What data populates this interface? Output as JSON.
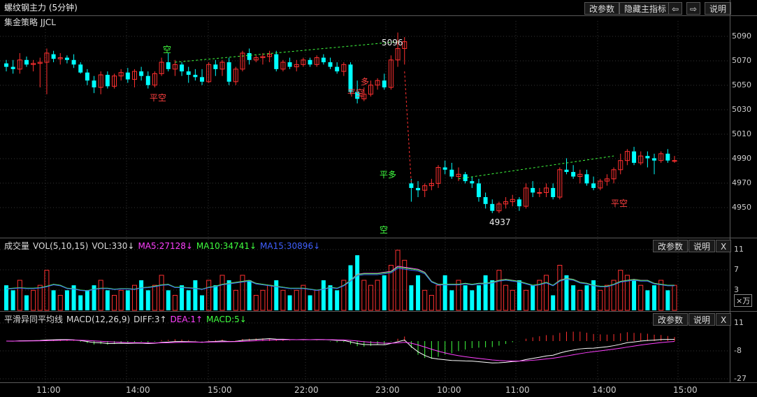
{
  "header": {
    "title": "螺纹钢主力 (5分钟)",
    "btn_params": "改参数",
    "btn_hide": "隐藏主指标",
    "btn_left": "⇦",
    "btn_right": "⇨",
    "btn_help": "说明"
  },
  "main_panel": {
    "strategy_label": "集金策略 JJCL",
    "y_ticks": [
      "5090",
      "5070",
      "5050",
      "5030",
      "5010",
      "4990",
      "4970",
      "4950"
    ],
    "high_label": "5096",
    "low_label": "4937",
    "signals": [
      "空",
      "平空",
      "平空",
      "多",
      "平多",
      "空",
      "平空"
    ]
  },
  "volume_panel": {
    "name": "成交量",
    "indicator": "VOL(5,10,15)",
    "vol": "VOL:330↓",
    "ma5": "MA5:27128↓",
    "ma10": "MA10:34741↓",
    "ma15": "MA15:30896↓",
    "btn_params": "改参数",
    "btn_help": "说明",
    "btn_close": "X",
    "y_ticks": [
      "11",
      "7",
      "3"
    ],
    "unit": "×万",
    "colors": {
      "ma5": "#ff40ff",
      "ma10": "#40ff40",
      "ma15": "#4060ff"
    }
  },
  "macd_panel": {
    "name": "平滑异同平均线",
    "indicator": "MACD(12,26,9)",
    "diff": "DIFF:3↑",
    "dea": "DEA:1↑",
    "macd": "MACD:5↓",
    "btn_params": "改参数",
    "btn_help": "说明",
    "btn_close": "X",
    "y_ticks": [
      "11",
      "-8",
      "-27"
    ]
  },
  "x_axis": [
    "11:00",
    "14:00",
    "15:00",
    "22:00",
    "23:00",
    "10:00",
    "11:00",
    "14:00",
    "15:00"
  ],
  "chart_data": {
    "type": "candlestick",
    "up_color": "#ff3030",
    "down_color": "#00ffff",
    "price_range": [
      4928,
      5098
    ],
    "candles": [
      [
        5067,
        5070,
        5060,
        5064
      ],
      [
        5064,
        5070,
        5058,
        5062
      ],
      [
        5062,
        5076,
        5058,
        5070
      ],
      [
        5070,
        5073,
        5064,
        5066
      ],
      [
        5066,
        5070,
        5060,
        5067
      ],
      [
        5067,
        5072,
        5046,
        5068
      ],
      [
        5068,
        5080,
        5040,
        5076
      ],
      [
        5075,
        5078,
        5068,
        5071
      ],
      [
        5071,
        5076,
        5066,
        5072
      ],
      [
        5072,
        5074,
        5067,
        5070
      ],
      [
        5070,
        5075,
        5063,
        5066
      ],
      [
        5066,
        5068,
        5058,
        5059
      ],
      [
        5059,
        5062,
        5048,
        5052
      ],
      [
        5052,
        5056,
        5041,
        5046
      ],
      [
        5046,
        5060,
        5040,
        5057
      ],
      [
        5057,
        5060,
        5045,
        5047
      ],
      [
        5047,
        5058,
        5045,
        5056
      ],
      [
        5056,
        5062,
        5052,
        5059
      ],
      [
        5059,
        5063,
        5050,
        5053
      ],
      [
        5053,
        5062,
        5046,
        5060
      ],
      [
        5060,
        5064,
        5052,
        5056
      ],
      [
        5056,
        5060,
        5045,
        5048
      ],
      [
        5048,
        5060,
        5046,
        5058
      ],
      [
        5058,
        5072,
        5056,
        5068
      ],
      [
        5068,
        5076,
        5060,
        5062
      ],
      [
        5062,
        5070,
        5056,
        5066
      ],
      [
        5066,
        5068,
        5056,
        5060
      ],
      [
        5060,
        5064,
        5050,
        5057
      ],
      [
        5057,
        5062,
        5052,
        5055
      ],
      [
        5055,
        5062,
        5048,
        5051
      ],
      [
        5051,
        5068,
        5050,
        5066
      ],
      [
        5066,
        5070,
        5056,
        5062
      ],
      [
        5062,
        5070,
        5056,
        5068
      ],
      [
        5068,
        5072,
        5048,
        5051
      ],
      [
        5051,
        5064,
        5048,
        5062
      ],
      [
        5062,
        5078,
        5060,
        5076
      ],
      [
        5076,
        5080,
        5066,
        5070
      ],
      [
        5070,
        5074,
        5068,
        5072
      ],
      [
        5072,
        5076,
        5066,
        5073
      ],
      [
        5073,
        5078,
        5068,
        5075
      ],
      [
        5075,
        5078,
        5060,
        5062
      ],
      [
        5062,
        5070,
        5060,
        5068
      ],
      [
        5068,
        5072,
        5062,
        5064
      ],
      [
        5064,
        5070,
        5060,
        5066
      ],
      [
        5066,
        5072,
        5064,
        5070
      ],
      [
        5070,
        5072,
        5064,
        5066
      ],
      [
        5066,
        5074,
        5064,
        5072
      ],
      [
        5072,
        5075,
        5066,
        5068
      ],
      [
        5068,
        5072,
        5062,
        5064
      ],
      [
        5064,
        5068,
        5058,
        5060
      ],
      [
        5060,
        5068,
        5056,
        5066
      ],
      [
        5066,
        5068,
        5040,
        5042
      ],
      [
        5042,
        5052,
        5032,
        5036
      ],
      [
        5036,
        5046,
        5034,
        5040
      ],
      [
        5040,
        5052,
        5038,
        5048
      ],
      [
        5048,
        5054,
        5044,
        5052
      ],
      [
        5052,
        5058,
        5044,
        5046
      ],
      [
        5046,
        5074,
        5044,
        5070
      ],
      [
        5070,
        5094,
        5064,
        5080
      ],
      [
        5080,
        5090,
        5066,
        5086
      ],
      [
        4962,
        4966,
        4946,
        4958
      ],
      [
        4958,
        4964,
        4950,
        4956
      ],
      [
        4956,
        4962,
        4950,
        4960
      ],
      [
        4960,
        4966,
        4956,
        4962
      ],
      [
        4962,
        4978,
        4958,
        4976
      ],
      [
        4976,
        4982,
        4970,
        4974
      ],
      [
        4974,
        4980,
        4966,
        4968
      ],
      [
        4968,
        4976,
        4964,
        4970
      ],
      [
        4970,
        4972,
        4962,
        4964
      ],
      [
        4964,
        4968,
        4958,
        4962
      ],
      [
        4962,
        4966,
        4946,
        4950
      ],
      [
        4950,
        4954,
        4940,
        4944
      ],
      [
        4944,
        4948,
        4936,
        4938
      ],
      [
        4938,
        4946,
        4936,
        4944
      ],
      [
        4944,
        4950,
        4940,
        4946
      ],
      [
        4946,
        4952,
        4942,
        4948
      ],
      [
        4948,
        4950,
        4938,
        4942
      ],
      [
        4942,
        4962,
        4940,
        4958
      ],
      [
        4958,
        4964,
        4950,
        4954
      ],
      [
        4954,
        4958,
        4950,
        4954
      ],
      [
        4954,
        4962,
        4950,
        4958
      ],
      [
        4958,
        4962,
        4948,
        4950
      ],
      [
        4950,
        4976,
        4948,
        4974
      ],
      [
        4974,
        4984,
        4970,
        4972
      ],
      [
        4972,
        4978,
        4966,
        4968
      ],
      [
        4968,
        4974,
        4962,
        4970
      ],
      [
        4970,
        4974,
        4960,
        4962
      ],
      [
        4962,
        4968,
        4956,
        4958
      ],
      [
        4958,
        4966,
        4956,
        4964
      ],
      [
        4964,
        4970,
        4960,
        4966
      ],
      [
        4966,
        4976,
        4962,
        4974
      ],
      [
        4974,
        4988,
        4970,
        4982
      ],
      [
        4982,
        4992,
        4978,
        4990
      ],
      [
        4990,
        4994,
        4978,
        4980
      ],
      [
        4980,
        4990,
        4978,
        4986
      ],
      [
        4986,
        4990,
        4976,
        4984
      ],
      [
        4984,
        4988,
        4970,
        4982
      ],
      [
        4982,
        4990,
        4980,
        4988
      ],
      [
        4988,
        4992,
        4980,
        4982
      ],
      [
        4982,
        4986,
        4980,
        4982
      ]
    ],
    "volume": [
      5,
      4,
      6,
      3,
      4,
      5,
      8,
      4,
      3,
      4,
      5,
      3,
      4,
      5,
      6,
      4,
      3,
      4,
      4,
      5,
      6,
      4,
      5,
      7,
      4,
      3,
      5,
      4,
      6,
      3,
      6,
      5,
      7,
      6,
      4,
      7,
      6,
      3,
      4,
      5,
      6,
      4,
      3,
      4,
      5,
      3,
      4,
      6,
      5,
      4,
      6,
      9,
      11,
      6,
      5,
      6,
      7,
      9,
      12,
      10,
      5,
      7,
      4,
      3,
      5,
      7,
      4,
      6,
      5,
      4,
      5,
      7,
      6,
      8,
      5,
      4,
      6,
      4,
      5,
      6,
      7,
      3,
      9,
      7,
      5,
      4,
      5,
      6,
      4,
      5,
      6,
      8,
      7,
      6,
      5,
      4,
      5,
      6,
      4,
      5
    ],
    "ma5": [
      4.3,
      4.4,
      4.5,
      4.4,
      4.4,
      4.5,
      4.8,
      5.2,
      5.0,
      4.4,
      4.3,
      4.0,
      3.9,
      4.2,
      4.4,
      4.4,
      4.2,
      4.3,
      4.3,
      4.2,
      4.5,
      4.6,
      4.8,
      5.1,
      5.2,
      4.6,
      4.6,
      4.5,
      4.4,
      4.2,
      4.6,
      4.8,
      5.2,
      5.4,
      5.6,
      5.8,
      6.0,
      5.4,
      5.2,
      5.0,
      4.8,
      4.6,
      4.4,
      4.4,
      4.4,
      4.2,
      4.0,
      4.2,
      4.6,
      4.4,
      5.0,
      6.0,
      7.2,
      7.4,
      7.4,
      7.4,
      7.6,
      7.8,
      8.8,
      8.6,
      8.4,
      8.2,
      7.6,
      5.8,
      5.2,
      5.2,
      5.2,
      5.2,
      5.4,
      5.2,
      5.4,
      5.4,
      5.6,
      6.0,
      6.2,
      6.0,
      5.8,
      5.4,
      5.0,
      5.2,
      5.6,
      5.0,
      6.0,
      6.4,
      6.2,
      5.6,
      5.4,
      5.0,
      4.8,
      4.8,
      5.2,
      5.8,
      6.0,
      6.2,
      6.0,
      6.0,
      5.4,
      5.2,
      5.0,
      5.0
    ]
  }
}
